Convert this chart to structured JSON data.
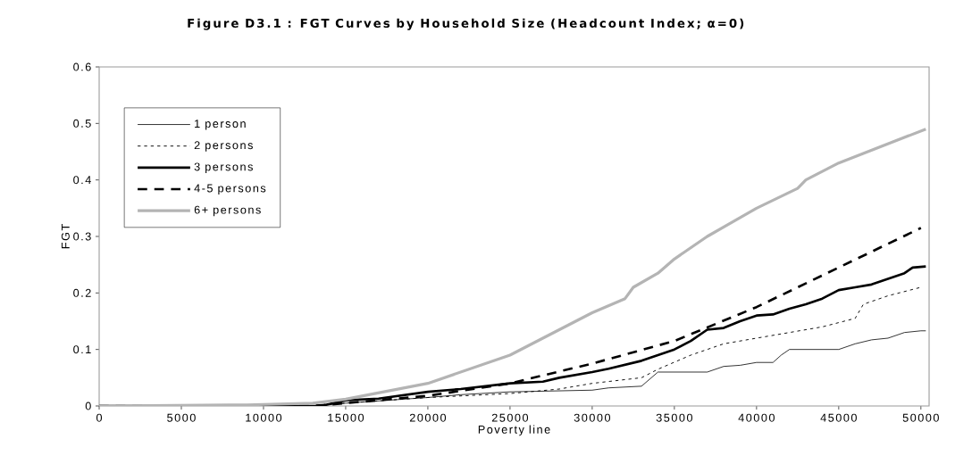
{
  "chart_data": {
    "type": "line",
    "title": "Figure D3.1 : FGT Curves by Household Size (Headcount Index;  α=0)",
    "xlabel": "Poverty line",
    "ylabel": "FGT",
    "xlim": [
      0,
      50500
    ],
    "ylim": [
      0,
      0.6
    ],
    "xticks": [
      0,
      5000,
      10000,
      15000,
      20000,
      25000,
      30000,
      35000,
      40000,
      45000,
      50000
    ],
    "yticks": [
      0,
      0.1,
      0.2,
      0.3,
      0.4,
      0.5,
      0.6
    ],
    "grid": false,
    "legend": "top left",
    "series": [
      {
        "name": "1 person",
        "color": "#000000",
        "line_style": "solid",
        "x": [
          0,
          13000,
          15000,
          20000,
          22000,
          25000,
          30000,
          31000,
          33000,
          34000,
          37000,
          38000,
          39000,
          40000,
          41000,
          41500,
          42000,
          45000,
          46000,
          47000,
          48000,
          49000,
          50000,
          50300
        ],
        "values": [
          0,
          0,
          0.005,
          0.015,
          0.02,
          0.025,
          0.028,
          0.032,
          0.035,
          0.06,
          0.06,
          0.07,
          0.072,
          0.077,
          0.077,
          0.09,
          0.1,
          0.1,
          0.11,
          0.117,
          0.12,
          0.13,
          0.133,
          0.133
        ]
      },
      {
        "name": "2 persons",
        "color": "#000000",
        "line_style": "dotted",
        "x": [
          0,
          13000,
          15000,
          20000,
          25000,
          28000,
          30000,
          33000,
          34000,
          36000,
          37000,
          38000,
          40000,
          42000,
          44000,
          46000,
          46500,
          48000,
          50000
        ],
        "values": [
          0,
          0,
          0.005,
          0.015,
          0.022,
          0.03,
          0.04,
          0.05,
          0.065,
          0.09,
          0.1,
          0.11,
          0.12,
          0.13,
          0.14,
          0.155,
          0.18,
          0.195,
          0.21
        ]
      },
      {
        "name": "3 persons",
        "color": "#000000",
        "line_style": "solid",
        "x": [
          0,
          13500,
          15000,
          17000,
          20000,
          22000,
          25000,
          27000,
          28000,
          30000,
          31000,
          33000,
          34000,
          35000,
          36000,
          37000,
          38000,
          39000,
          40000,
          41000,
          42000,
          43000,
          44000,
          45000,
          46000,
          47000,
          48000,
          49000,
          49500,
          50300
        ],
        "values": [
          0,
          0,
          0.01,
          0.013,
          0.025,
          0.03,
          0.04,
          0.043,
          0.05,
          0.06,
          0.066,
          0.08,
          0.09,
          0.1,
          0.115,
          0.135,
          0.138,
          0.15,
          0.16,
          0.162,
          0.172,
          0.18,
          0.19,
          0.205,
          0.21,
          0.215,
          0.225,
          0.235,
          0.245,
          0.247
        ]
      },
      {
        "name": "4-5 persons",
        "color": "#000000",
        "line_style": "dashed",
        "x": [
          0,
          13000,
          15000,
          20000,
          25000,
          30000,
          35000,
          40000,
          45000,
          50000
        ],
        "values": [
          0,
          0,
          0.005,
          0.018,
          0.04,
          0.075,
          0.115,
          0.175,
          0.245,
          0.315
        ]
      },
      {
        "name": "6+ persons",
        "color": "#b4b4b4",
        "line_style": "solid",
        "x": [
          0,
          9000,
          13000,
          15000,
          20000,
          25000,
          30000,
          32000,
          32500,
          34000,
          35000,
          37000,
          40000,
          42500,
          43000,
          45000,
          50300
        ],
        "values": [
          0,
          0.002,
          0.005,
          0.012,
          0.04,
          0.09,
          0.165,
          0.19,
          0.21,
          0.235,
          0.26,
          0.3,
          0.35,
          0.385,
          0.4,
          0.43,
          0.49
        ]
      }
    ]
  }
}
